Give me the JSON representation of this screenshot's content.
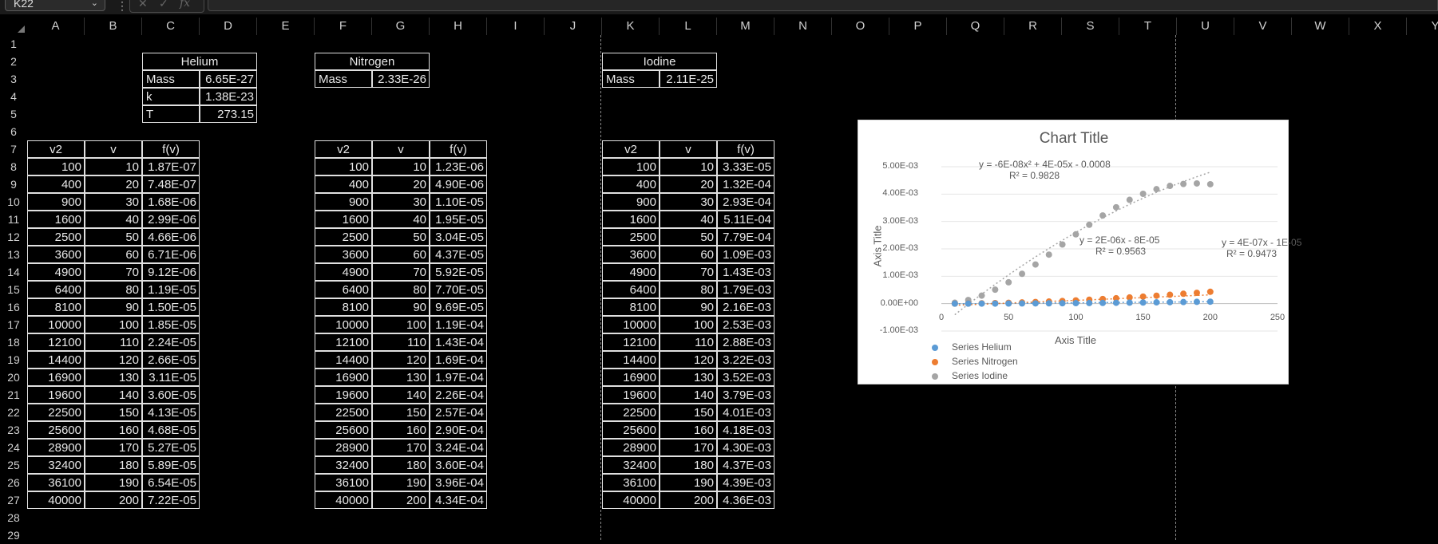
{
  "formula_bar": {
    "name_box": "K22",
    "formula": ""
  },
  "columns": [
    "A",
    "B",
    "C",
    "D",
    "E",
    "F",
    "G",
    "H",
    "I",
    "J",
    "K",
    "L",
    "M",
    "N",
    "O",
    "P",
    "Q",
    "R",
    "S",
    "T",
    "U",
    "V",
    "W",
    "X",
    "Y"
  ],
  "rows": [
    "1",
    "2",
    "3",
    "4",
    "5",
    "6",
    "7",
    "8",
    "9",
    "10",
    "11",
    "12",
    "13",
    "14",
    "15",
    "16",
    "17",
    "18",
    "19",
    "20",
    "21",
    "22",
    "23",
    "24",
    "25",
    "26",
    "27",
    "28",
    "29"
  ],
  "helium": {
    "title": "Helium",
    "params": [
      {
        "label": "Mass",
        "value": "6.65E-27"
      },
      {
        "label": "k",
        "value": "1.38E-23"
      },
      {
        "label": "T",
        "value": "273.15"
      }
    ]
  },
  "nitrogen": {
    "title": "Nitrogen",
    "params": [
      {
        "label": "Mass",
        "value": "2.33E-26"
      }
    ]
  },
  "iodine": {
    "title": "Iodine",
    "params": [
      {
        "label": "Mass",
        "value": "2.11E-25"
      }
    ]
  },
  "table_headers": [
    "v2",
    "v",
    "f(v)"
  ],
  "v2": [
    "100",
    "400",
    "900",
    "1600",
    "2500",
    "3600",
    "4900",
    "6400",
    "8100",
    "10000",
    "12100",
    "14400",
    "16900",
    "19600",
    "22500",
    "25600",
    "28900",
    "32400",
    "36100",
    "40000"
  ],
  "v": [
    "10",
    "20",
    "30",
    "40",
    "50",
    "60",
    "70",
    "80",
    "90",
    "100",
    "110",
    "120",
    "130",
    "140",
    "150",
    "160",
    "170",
    "180",
    "190",
    "200"
  ],
  "f_helium": [
    "1.87E-07",
    "7.48E-07",
    "1.68E-06",
    "2.99E-06",
    "4.66E-06",
    "6.71E-06",
    "9.12E-06",
    "1.19E-05",
    "1.50E-05",
    "1.85E-05",
    "2.24E-05",
    "2.66E-05",
    "3.11E-05",
    "3.60E-05",
    "4.13E-05",
    "4.68E-05",
    "5.27E-05",
    "5.89E-05",
    "6.54E-05",
    "7.22E-05"
  ],
  "f_nitrogen": [
    "1.23E-06",
    "4.90E-06",
    "1.10E-05",
    "1.95E-05",
    "3.04E-05",
    "4.37E-05",
    "5.92E-05",
    "7.70E-05",
    "9.69E-05",
    "1.19E-04",
    "1.43E-04",
    "1.69E-04",
    "1.97E-04",
    "2.26E-04",
    "2.57E-04",
    "2.90E-04",
    "3.24E-04",
    "3.60E-04",
    "3.96E-04",
    "4.34E-04"
  ],
  "f_iodine": [
    "3.33E-05",
    "1.32E-04",
    "2.93E-04",
    "5.11E-04",
    "7.79E-04",
    "1.09E-03",
    "1.43E-03",
    "1.79E-03",
    "2.16E-03",
    "2.53E-03",
    "2.88E-03",
    "3.22E-03",
    "3.52E-03",
    "3.79E-03",
    "4.01E-03",
    "4.18E-03",
    "4.30E-03",
    "4.37E-03",
    "4.39E-03",
    "4.36E-03"
  ],
  "chart_data": {
    "type": "scatter",
    "title": "Chart Title",
    "xlabel": "Axis Title",
    "ylabel": "Axis Title",
    "xlim": [
      0,
      250
    ],
    "ylim": [
      -0.001,
      0.005
    ],
    "x_ticks": [
      "0",
      "50",
      "100",
      "150",
      "200",
      "250"
    ],
    "y_ticks": [
      "5.00E-03",
      "4.00E-03",
      "3.00E-03",
      "2.00E-03",
      "1.00E-03",
      "0.00E+00",
      "-1.00E-03"
    ],
    "legend_position": "bottom-left",
    "x": [
      10,
      20,
      30,
      40,
      50,
      60,
      70,
      80,
      90,
      100,
      110,
      120,
      130,
      140,
      150,
      160,
      170,
      180,
      190,
      200
    ],
    "series": [
      {
        "name": "Series Helium",
        "color": "#5b9bd5",
        "values": [
          1.87e-07,
          7.48e-07,
          1.68e-06,
          2.99e-06,
          4.66e-06,
          6.71e-06,
          9.12e-06,
          1.19e-05,
          1.5e-05,
          1.85e-05,
          2.24e-05,
          2.66e-05,
          3.11e-05,
          3.6e-05,
          4.13e-05,
          4.68e-05,
          5.27e-05,
          5.89e-05,
          6.54e-05,
          7.22e-05
        ],
        "trendline": "y = 4E-07x - 1E-05",
        "r2": "R² = 0.9473"
      },
      {
        "name": "Series Nitrogen",
        "color": "#ed7d31",
        "values": [
          1.23e-06,
          4.9e-06,
          1.1e-05,
          1.95e-05,
          3.04e-05,
          4.37e-05,
          5.92e-05,
          7.7e-05,
          9.69e-05,
          0.000119,
          0.000143,
          0.000169,
          0.000197,
          0.000226,
          0.000257,
          0.00029,
          0.000324,
          0.00036,
          0.000396,
          0.000434
        ],
        "trendline": "y = 2E-06x - 8E-05",
        "r2": "R² = 0.9563"
      },
      {
        "name": "Series Iodine",
        "color": "#a5a5a5",
        "values": [
          3.33e-05,
          0.000132,
          0.000293,
          0.000511,
          0.000779,
          0.00109,
          0.00143,
          0.00179,
          0.00216,
          0.00253,
          0.00288,
          0.00322,
          0.00352,
          0.00379,
          0.00401,
          0.00418,
          0.0043,
          0.00437,
          0.00439,
          0.00436
        ],
        "trendline": "y = -6E-08x² + 4E-05x - 0.0008",
        "r2": "R² = 0.9828"
      }
    ]
  }
}
